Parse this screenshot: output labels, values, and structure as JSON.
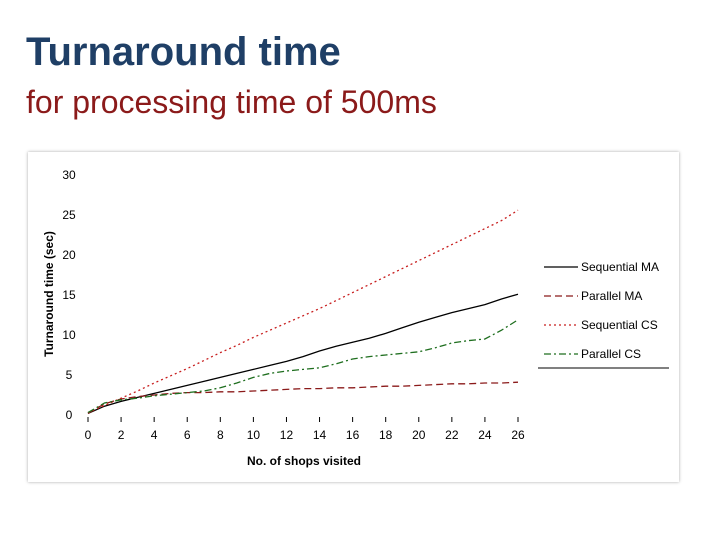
{
  "slide": {
    "title": "Turnaround time",
    "subtitle": "for processing time of 500ms",
    "colors": {
      "title": "#1f3f66",
      "subtitle": "#8b1a1a"
    }
  },
  "chart_data": {
    "type": "line",
    "title": "",
    "xlabel": "No. of shops visited",
    "ylabel": "Turnaround time (sec)",
    "xlim": [
      0,
      26
    ],
    "ylim": [
      0,
      30
    ],
    "x_ticks": [
      0,
      2,
      4,
      6,
      8,
      10,
      12,
      14,
      16,
      18,
      20,
      22,
      24,
      26
    ],
    "y_ticks": [
      0,
      5,
      10,
      15,
      20,
      25,
      30
    ],
    "grid": false,
    "legend_position": "right",
    "series": [
      {
        "name": "Sequential MA",
        "color": "#000000",
        "dash": "solid",
        "x": [
          0,
          1,
          2,
          3,
          4,
          5,
          6,
          7,
          8,
          9,
          10,
          11,
          12,
          13,
          14,
          15,
          16,
          17,
          18,
          19,
          20,
          21,
          22,
          23,
          24,
          25,
          26
        ],
        "y": [
          0.2,
          1.1,
          1.7,
          2.2,
          2.7,
          3.2,
          3.7,
          4.2,
          4.7,
          5.2,
          5.7,
          6.2,
          6.7,
          7.3,
          8.0,
          8.6,
          9.1,
          9.6,
          10.2,
          10.9,
          11.6,
          12.2,
          12.8,
          13.3,
          13.8,
          14.5,
          15.1
        ]
      },
      {
        "name": "Parallel MA",
        "color": "#8b1a1a",
        "dash": "dashed",
        "x": [
          0,
          1,
          2,
          3,
          4,
          5,
          6,
          7,
          8,
          9,
          10,
          11,
          12,
          13,
          14,
          15,
          16,
          17,
          18,
          19,
          20,
          21,
          22,
          23,
          24,
          25,
          26
        ],
        "y": [
          0.2,
          1.4,
          2.0,
          2.3,
          2.5,
          2.7,
          2.8,
          2.8,
          2.9,
          2.9,
          3.0,
          3.1,
          3.2,
          3.3,
          3.3,
          3.4,
          3.4,
          3.5,
          3.6,
          3.6,
          3.7,
          3.8,
          3.9,
          3.9,
          4.0,
          4.0,
          4.1
        ]
      },
      {
        "name": "Sequential CS",
        "color": "#c81e1e",
        "dash": "dotted",
        "x": [
          0,
          1,
          2,
          3,
          4,
          5,
          6,
          7,
          8,
          9,
          10,
          11,
          12,
          13,
          14,
          15,
          16,
          17,
          18,
          19,
          20,
          21,
          22,
          23,
          24,
          25,
          26
        ],
        "y": [
          0.3,
          1.2,
          2.1,
          3.0,
          4.0,
          4.9,
          5.8,
          6.8,
          7.8,
          8.7,
          9.7,
          10.6,
          11.5,
          12.4,
          13.3,
          14.3,
          15.3,
          16.3,
          17.3,
          18.3,
          19.3,
          20.3,
          21.3,
          22.3,
          23.3,
          24.3,
          25.6
        ]
      },
      {
        "name": "Parallel CS",
        "color": "#1e6e1e",
        "dash": "dashdot",
        "x": [
          0,
          1,
          2,
          3,
          4,
          5,
          6,
          7,
          8,
          9,
          10,
          11,
          12,
          13,
          14,
          15,
          16,
          17,
          18,
          19,
          20,
          21,
          22,
          23,
          24,
          25,
          26
        ],
        "y": [
          0.3,
          1.5,
          1.9,
          2.1,
          2.4,
          2.6,
          2.8,
          3.0,
          3.4,
          4.0,
          4.7,
          5.2,
          5.5,
          5.7,
          5.9,
          6.4,
          7.0,
          7.3,
          7.5,
          7.7,
          7.9,
          8.4,
          9.0,
          9.3,
          9.5,
          10.6,
          11.9
        ]
      }
    ]
  }
}
